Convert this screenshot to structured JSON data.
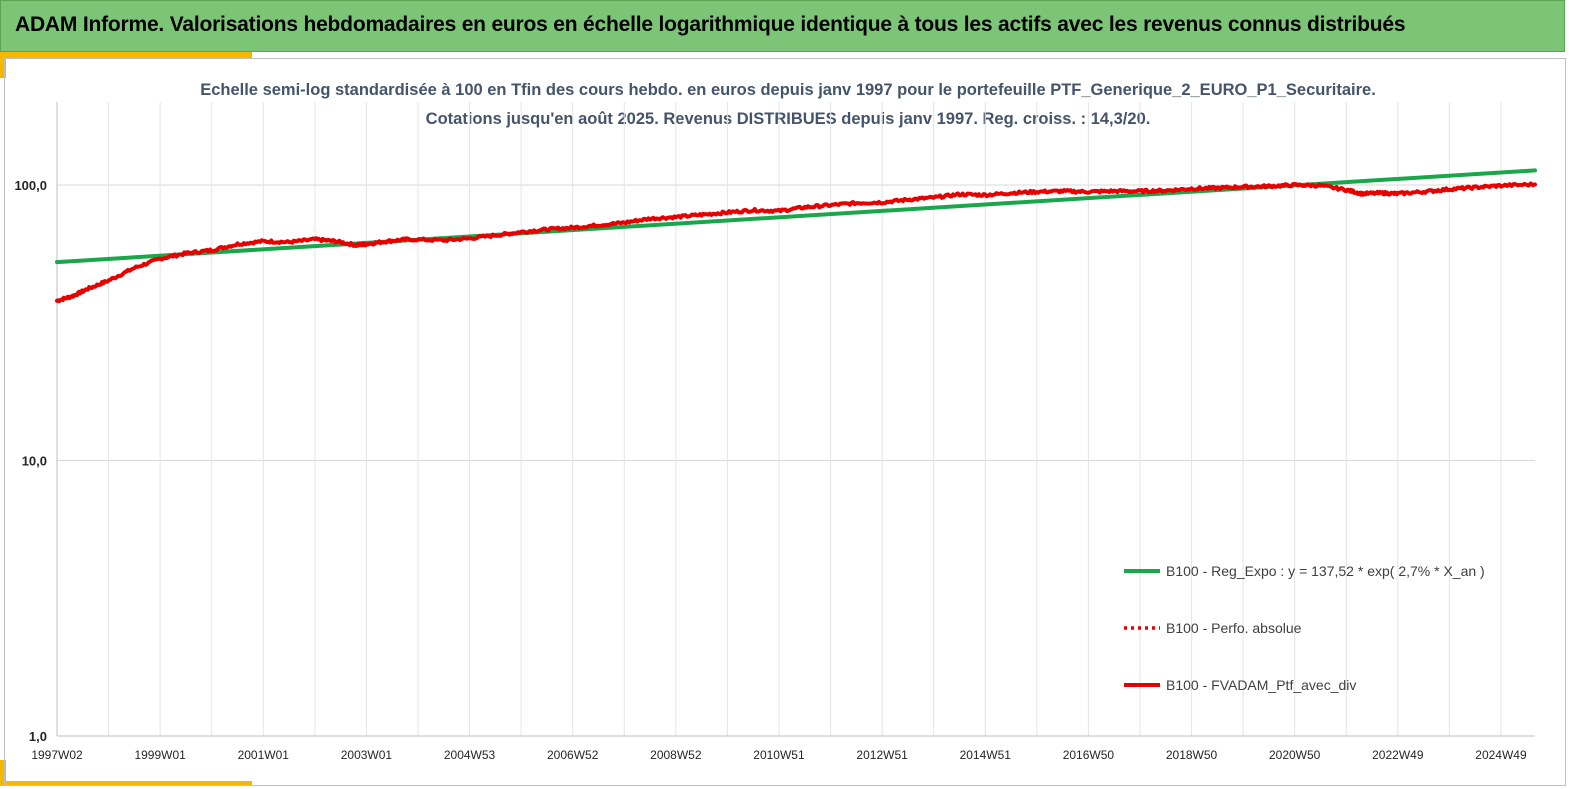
{
  "header": {
    "title": "ADAM Informe. Valorisations hebdomadaires en euros en échelle logarithmique identique à tous les actifs avec les revenus connus distribués"
  },
  "colors": {
    "header_bg": "#7dc576",
    "accent": "#f5b800",
    "regression": "#1aa64a",
    "portfolio": "#e60000"
  },
  "chart_data": {
    "type": "line",
    "title_line1": "Echelle semi-log standardisée à 100 en Tfin des cours hebdo. en euros depuis janv 1997 pour le portefeuille PTF_Generique_2_EURO_P1_Securitaire.",
    "title_line2": "Cotations jusqu'en août 2025. Revenus DISTRIBUES depuis janv 1997. Reg. croiss. : 14,3/20.",
    "y_scale": "log",
    "ylim": [
      1,
      200
    ],
    "y_ticks": [
      {
        "value": 1,
        "label": "1,0"
      },
      {
        "value": 10,
        "label": "10,0"
      },
      {
        "value": 100,
        "label": "100,0"
      }
    ],
    "x_ticks": [
      {
        "t": 1997.0,
        "label": "1997W02"
      },
      {
        "t": 1999.0,
        "label": "1999W01"
      },
      {
        "t": 2001.0,
        "label": "2001W01"
      },
      {
        "t": 2003.0,
        "label": "2003W01"
      },
      {
        "t": 2005.0,
        "label": "2004W53"
      },
      {
        "t": 2007.0,
        "label": "2006W52"
      },
      {
        "t": 2009.0,
        "label": "2008W52"
      },
      {
        "t": 2011.0,
        "label": "2010W51"
      },
      {
        "t": 2013.0,
        "label": "2012W51"
      },
      {
        "t": 2015.0,
        "label": "2014W51"
      },
      {
        "t": 2017.0,
        "label": "2016W50"
      },
      {
        "t": 2019.0,
        "label": "2018W50"
      },
      {
        "t": 2021.0,
        "label": "2020W50"
      },
      {
        "t": 2023.0,
        "label": "2022W49"
      },
      {
        "t": 2025.0,
        "label": "2024W49"
      }
    ],
    "xlim": [
      1997.0,
      2025.66
    ],
    "grid": true,
    "legend_position": "bottom-right",
    "series": [
      {
        "name": "B100 - Reg_Expo : y = 137,52 * exp( 2,7% * X_an )",
        "style": "solid",
        "color": "#1aa64a",
        "t": [
          1997.0,
          2025.66
        ],
        "values": [
          52.5,
          113.0
        ]
      },
      {
        "name": "B100 - Perfo. absolue",
        "style": "dotted",
        "color": "#e60000",
        "t": [],
        "values": []
      },
      {
        "name": "B100 - FVADAM_Ptf_avec_div",
        "style": "solid",
        "color": "#e60000",
        "t": [
          1997.0,
          1997.3,
          1997.6,
          1998.0,
          1998.5,
          1999.0,
          1999.5,
          2000.0,
          2000.5,
          2001.0,
          2001.5,
          2002.0,
          2002.4,
          2002.8,
          2003.0,
          2003.4,
          2003.8,
          2004.5,
          2005.0,
          2005.6,
          2006.0,
          2006.5,
          2007.0,
          2007.5,
          2008.0,
          2008.5,
          2009.0,
          2009.5,
          2010.0,
          2010.5,
          2011.0,
          2011.5,
          2012.0,
          2012.5,
          2013.0,
          2013.5,
          2014.0,
          2014.5,
          2015.0,
          2015.5,
          2016.0,
          2016.5,
          2017.0,
          2017.5,
          2018.0,
          2018.5,
          2019.0,
          2019.5,
          2020.0,
          2020.5,
          2021.0,
          2021.5,
          2022.0,
          2022.3,
          2022.7,
          2023.0,
          2023.5,
          2024.0,
          2024.5,
          2025.0,
          2025.66
        ],
        "values": [
          38.0,
          39.5,
          42.0,
          45.0,
          50.0,
          54.0,
          56.5,
          58.0,
          61.0,
          62.5,
          62.0,
          63.5,
          62.5,
          60.5,
          61.0,
          62.5,
          63.5,
          63.0,
          64.0,
          66.0,
          67.5,
          69.0,
          70.0,
          71.5,
          73.0,
          75.5,
          76.5,
          78.0,
          79.5,
          81.0,
          80.5,
          83.0,
          84.5,
          86.0,
          86.5,
          88.5,
          90.0,
          92.5,
          92.0,
          93.5,
          94.5,
          95.0,
          94.5,
          95.0,
          95.0,
          95.5,
          97.0,
          97.5,
          98.5,
          99.0,
          100.0,
          99.5,
          96.0,
          93.0,
          93.5,
          93.0,
          94.5,
          96.5,
          98.0,
          99.5,
          100.5
        ]
      }
    ]
  }
}
